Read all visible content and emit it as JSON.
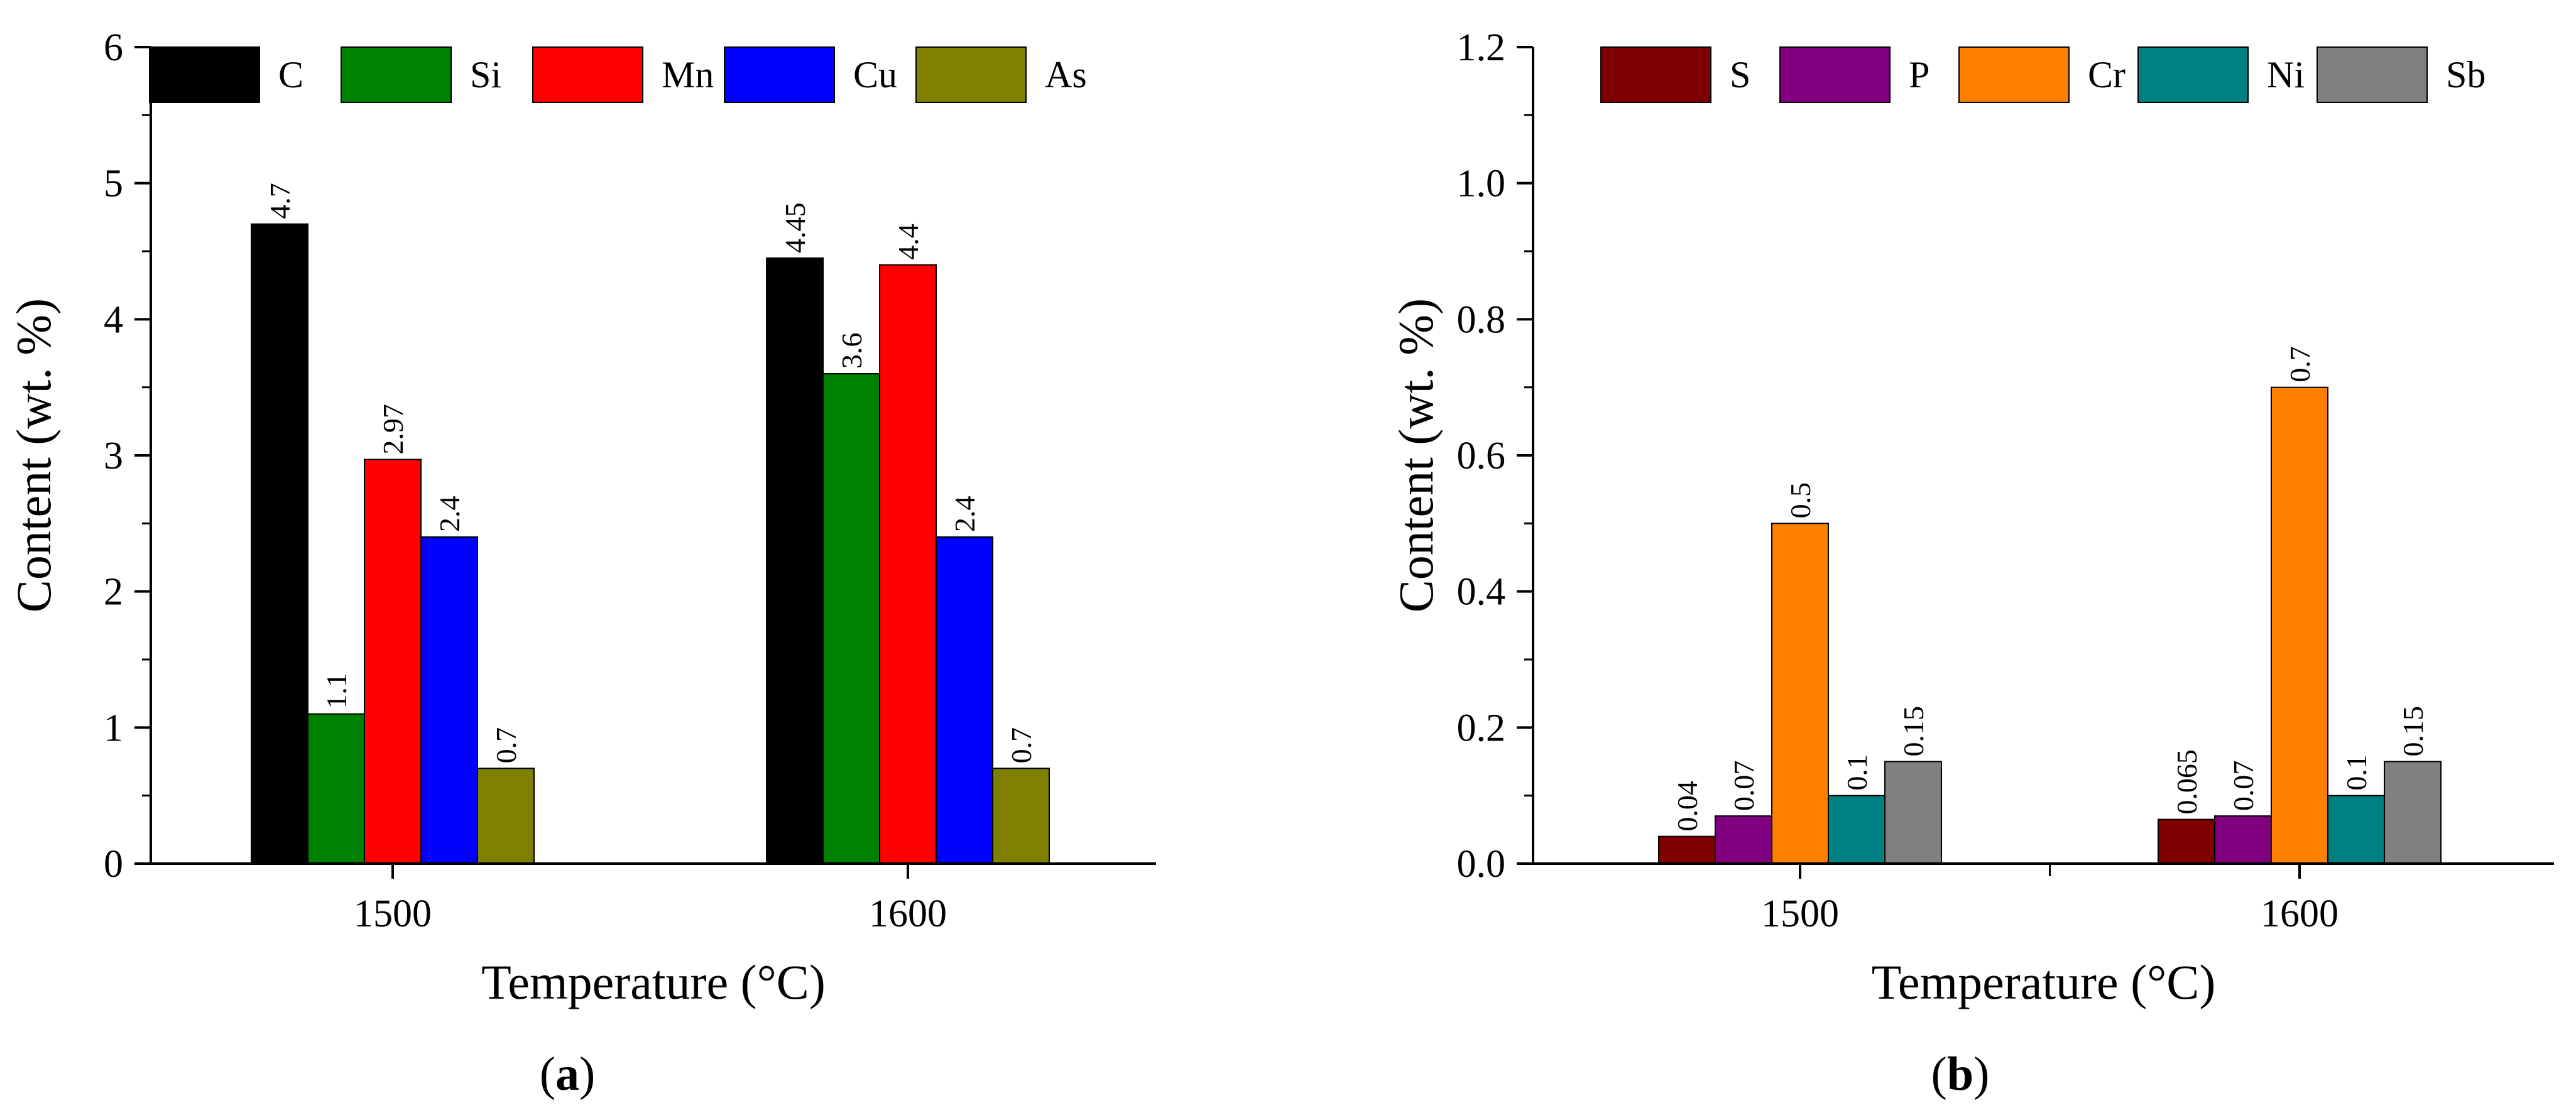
{
  "chart_data": [
    {
      "panel": "a",
      "caption": "(a)",
      "type": "bar",
      "title": "",
      "xlabel": "Temperature (°C)",
      "ylabel": "Content (wt. %)",
      "categories": [
        "1500",
        "1600"
      ],
      "ylim": [
        0,
        6
      ],
      "yticks": [
        0,
        1,
        2,
        3,
        4,
        5,
        6
      ],
      "legend_position": "top",
      "series": [
        {
          "name": "C",
          "color": "#000000",
          "values": [
            4.7,
            4.45
          ],
          "labels": [
            "4.7",
            "4.45"
          ]
        },
        {
          "name": "Si",
          "color": "#008000",
          "values": [
            1.1,
            3.6
          ],
          "labels": [
            "1.1",
            "3.6"
          ]
        },
        {
          "name": "Mn",
          "color": "#ff0000",
          "values": [
            2.97,
            4.4
          ],
          "labels": [
            "2.97",
            "4.4"
          ]
        },
        {
          "name": "Cu",
          "color": "#0000ff",
          "values": [
            2.4,
            2.4
          ],
          "labels": [
            "2.4",
            "2.4"
          ]
        },
        {
          "name": "As",
          "color": "#808000",
          "values": [
            0.7,
            0.7
          ],
          "labels": [
            "0.7",
            "0.7"
          ]
        }
      ]
    },
    {
      "panel": "b",
      "caption": "(b)",
      "type": "bar",
      "title": "",
      "xlabel": "Temperature (°C)",
      "ylabel": "Content (wt. %)",
      "categories": [
        "1500",
        "1600"
      ],
      "ylim": [
        0,
        1.2
      ],
      "yticks": [
        "0.0",
        "0.2",
        "0.4",
        "0.6",
        "0.8",
        "1.0",
        "1.2"
      ],
      "legend_position": "top",
      "series": [
        {
          "name": "S",
          "color": "#7f0000",
          "values": [
            0.04,
            0.065
          ],
          "labels": [
            "0.04",
            "0.065"
          ]
        },
        {
          "name": "P",
          "color": "#800080",
          "values": [
            0.07,
            0.07
          ],
          "labels": [
            "0.07",
            "0.07"
          ]
        },
        {
          "name": "Cr",
          "color": "#ff8000",
          "values": [
            0.5,
            0.7
          ],
          "labels": [
            "0.5",
            "0.7"
          ]
        },
        {
          "name": "Ni",
          "color": "#008080",
          "values": [
            0.1,
            0.1
          ],
          "labels": [
            "0.1",
            "0.1"
          ]
        },
        {
          "name": "Sb",
          "color": "#808080",
          "values": [
            0.15,
            0.15
          ],
          "labels": [
            "0.15",
            "0.15"
          ]
        }
      ]
    }
  ]
}
